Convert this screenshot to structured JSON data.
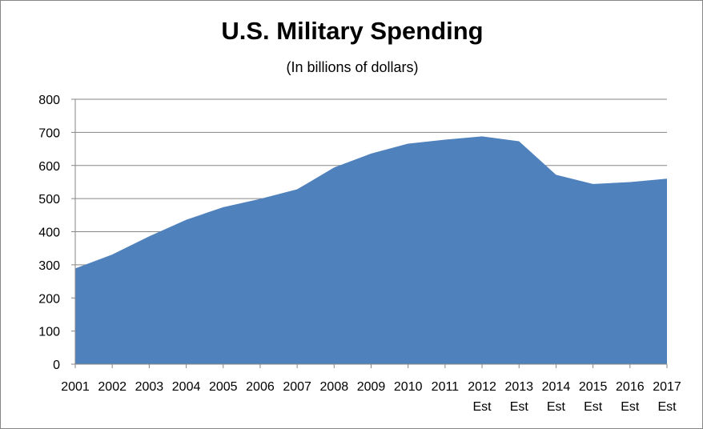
{
  "chart_data": {
    "type": "area",
    "title": "U.S. Military Spending",
    "subtitle": "(In billions of dollars)",
    "x": [
      "2001",
      "2002",
      "2003",
      "2004",
      "2005",
      "2006",
      "2007",
      "2008",
      "2009",
      "2010",
      "2011",
      "2012",
      "2013",
      "2014",
      "2015",
      "2016",
      "2017"
    ],
    "x_sublabels": [
      "",
      "",
      "",
      "",
      "",
      "",
      "",
      "",
      "",
      "",
      "",
      "Est",
      "Est",
      "Est",
      "Est",
      "Est",
      "Est"
    ],
    "values": [
      289,
      331,
      386,
      436,
      474,
      499,
      528,
      594,
      636,
      666,
      678,
      688,
      673,
      572,
      544,
      550,
      560
    ],
    "ylim": [
      0,
      800
    ],
    "yticks": [
      0,
      100,
      200,
      300,
      400,
      500,
      600,
      700,
      800
    ],
    "grid": true,
    "legend": "none",
    "fill_color": "#4f81bd"
  }
}
